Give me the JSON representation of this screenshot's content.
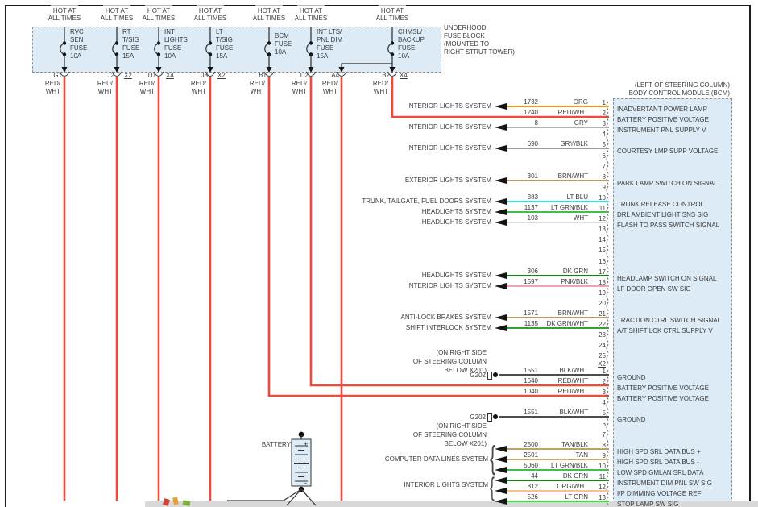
{
  "diagram": {
    "hot_label": [
      "HOT AT",
      "ALL TIMES"
    ],
    "fuse_block_note": [
      "UNDERHOOD",
      "FUSE BLOCK",
      "(MOUNTED TO",
      "RIGHT STRUT TOWER)"
    ],
    "wire_color_label": [
      "RED/",
      "WHT"
    ],
    "fuses": [
      {
        "label": [
          "RVC",
          "SEN",
          "FUSE",
          "10A"
        ],
        "pin": "G1",
        "conn": ""
      },
      {
        "label": [
          "RT",
          "T/SIG",
          "FUSE",
          "15A"
        ],
        "pin": "J2",
        "conn": "X2"
      },
      {
        "label": [
          "INT",
          "LIGHTS",
          "FUSE",
          "10A"
        ],
        "pin": "D1",
        "conn": "X4"
      },
      {
        "label": [
          "LT",
          "T/SIG",
          "FUSE",
          "15A"
        ],
        "pin": "J3",
        "conn": "X2"
      },
      {
        "label": [
          "BCM",
          "FUSE",
          "10A"
        ],
        "pin": "B1",
        "conn": ""
      },
      {
        "label": [
          "INT LTS/",
          "PNL DIM",
          "FUSE",
          "15A"
        ],
        "pin": "D2",
        "conn": ""
      },
      {
        "label": [
          "CHMSL/",
          "BACKUP",
          "FUSE",
          "10A"
        ],
        "pin": "B2",
        "conn": "X4"
      }
    ],
    "extra_pin": {
      "pin": "A4"
    },
    "bcm_title": [
      "(LEFT OF STEERING COLUMN)",
      "BODY CONTROL MODULE (BCM)"
    ],
    "x2_connector_label": "X2",
    "battery": {
      "label": "BATTERY",
      "plus": "+",
      "minus": "-"
    },
    "ground_notes": {
      "a": {
        "lines": [
          "(ON RIGHT SIDE",
          "OF STEERING COLUMN",
          "BELOW X201)"
        ],
        "tag": "G202"
      },
      "b": {
        "tag": "G202",
        "lines": [
          "(ON RIGHT SIDE",
          "OF STEERING COLUMN",
          "BELOW X201)"
        ]
      }
    },
    "braces": [
      {
        "label": "COMPUTER DATA LINES SYSTEM"
      },
      {
        "label": "INTERIOR LIGHTS SYSTEM"
      }
    ],
    "connectors": {
      "x1": {
        "pins": 25
      },
      "x2": {
        "pins": 13
      }
    },
    "wires": {
      "x1": [
        {
          "pin": 1,
          "circuit": "1732",
          "color": "ORG",
          "hex": "#f0921e",
          "left": "INTERIOR LIGHTS SYSTEM",
          "right": "INADVERTANT POWER LAMP",
          "type": "arrow"
        },
        {
          "pin": 2,
          "circuit": "1240",
          "color": "RED/WHT",
          "hex": "#ed4a3d",
          "left": "",
          "right": "BATTERY POSITIVE VOLTAGE",
          "type": "feed"
        },
        {
          "pin": 3,
          "circuit": "8",
          "color": "GRY",
          "hex": "#b0b0b0",
          "left": "INTERIOR LIGHTS SYSTEM",
          "right": "INSTRUMENT PNL SUPPLY V",
          "type": "arrow"
        },
        {
          "pin": 5,
          "circuit": "690",
          "color": "GRY/BLK",
          "hex": "#9a9a9a",
          "left": "INTERIOR LIGHTS SYSTEM",
          "right": "COURTESY LMP SUPP VOLTAGE",
          "type": "arrow"
        },
        {
          "pin": 8,
          "circuit": "301",
          "color": "BRN/WHT",
          "hex": "#b49a6c",
          "left": "EXTERIOR LIGHTS SYSTEM",
          "right": "PARK LAMP SWITCH ON SIGNAL",
          "type": "arrow"
        },
        {
          "pin": 10,
          "circuit": "383",
          "color": "LT BLU",
          "hex": "#3fd8e8",
          "left": "TRUNK, TAILGATE, FUEL DOORS SYSTEM",
          "right": "TRUNK RELEASE CONTROL",
          "type": "arrow"
        },
        {
          "pin": 11,
          "circuit": "1137",
          "color": "LT GRN/BLK",
          "hex": "#41bd4a",
          "left": "HEADLIGHTS SYSTEM",
          "right": "DRL AMBIENT LIGHT SNS SIG",
          "type": "arrow"
        },
        {
          "pin": 12,
          "circuit": "103",
          "color": "WHT",
          "hex": "#dcdcdc",
          "left": "HEADLIGHTS SYSTEM",
          "right": "FLASH TO PASS SWITCH SIGNAL",
          "type": "arrow"
        },
        {
          "pin": 17,
          "circuit": "306",
          "color": "DK GRN",
          "hex": "#177d1d",
          "left": "HEADLIGHTS SYSTEM",
          "right": "HEADLAMP SWITCH ON SIGNAL",
          "type": "arrow"
        },
        {
          "pin": 18,
          "circuit": "1597",
          "color": "PNK/BLK",
          "hex": "#f0a2b2",
          "left": "INTERIOR LIGHTS SYSTEM",
          "right": "LF DOOR OPEN SW SIG",
          "type": "arrow"
        },
        {
          "pin": 21,
          "circuit": "1571",
          "color": "BRN/WHT",
          "hex": "#b49a6c",
          "left": "ANTI-LOCK BRAKES SYSTEM",
          "right": "TRACTION CTRL SWITCH SIGNAL",
          "type": "arrow"
        },
        {
          "pin": 22,
          "circuit": "1135",
          "color": "DK GRN/WHT",
          "hex": "#2fa23a",
          "left": "SHIFT INTERLOCK SYSTEM",
          "right": "A/T SHIFT LCK CTRL SUPPLY V",
          "type": "arrow"
        }
      ],
      "x2": [
        {
          "pin": 1,
          "circuit": "1551",
          "color": "BLK/WHT",
          "hex": "#4d4d4d",
          "left": "",
          "right": "GROUND",
          "type": "ground"
        },
        {
          "pin": 2,
          "circuit": "1640",
          "color": "RED/WHT",
          "hex": "#ed4a3d",
          "left": "",
          "right": "BATTERY POSITIVE VOLTAGE",
          "type": "feed"
        },
        {
          "pin": 3,
          "circuit": "1040",
          "color": "RED/WHT",
          "hex": "#ed4a3d",
          "left": "",
          "right": "BATTERY POSITIVE VOLTAGE",
          "type": "feed"
        },
        {
          "pin": 5,
          "circuit": "1551",
          "color": "BLK/WHT",
          "hex": "#4d4d4d",
          "left": "",
          "right": "GROUND",
          "type": "ground"
        },
        {
          "pin": 8,
          "circuit": "2500",
          "color": "TAN/BLK",
          "hex": "#c09f68",
          "left": "",
          "right": "HIGH SPD SRL DATA BUS +",
          "type": "arrow"
        },
        {
          "pin": 9,
          "circuit": "2501",
          "color": "TAN",
          "hex": "#cbaa70",
          "left": "",
          "right": "HIGH SPD SRL DATA BUS -",
          "type": "arrow"
        },
        {
          "pin": 10,
          "circuit": "5060",
          "color": "LT GRN/BLK",
          "hex": "#41bd4a",
          "left": "",
          "right": "LOW SPD GMLAN SRL DATA",
          "type": "arrow"
        },
        {
          "pin": 11,
          "circuit": "44",
          "color": "DK GRN",
          "hex": "#177d1d",
          "left": "",
          "right": "INSTRUMENT DIM PNL SW SIG",
          "type": "arrow"
        },
        {
          "pin": 12,
          "circuit": "812",
          "color": "ORG/WHT",
          "hex": "#f6c38a",
          "left": "",
          "right": "I/P DIMMING VOLTAGE REF",
          "type": "arrow"
        },
        {
          "pin": 13,
          "circuit": "526",
          "color": "LT GRN",
          "hex": "#3ede3e",
          "left": "",
          "right": "STOP LAMP SW SIG",
          "type": "arrow"
        }
      ]
    },
    "feed_wire_color": "#ee4a3e"
  }
}
